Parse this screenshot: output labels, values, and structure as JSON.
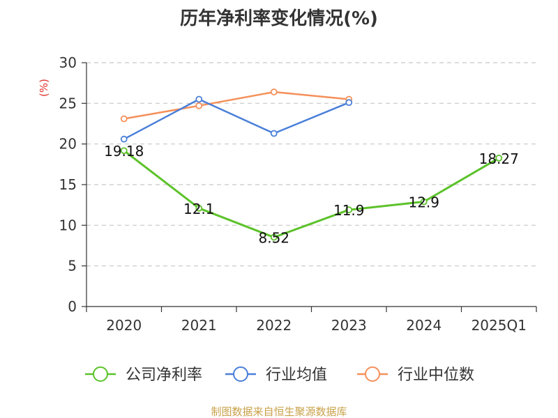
{
  "chart_data": {
    "type": "line",
    "title": "历年净利率变化情况(%)",
    "ylabel": "(%)",
    "xlabel": "",
    "categories": [
      "2020",
      "2021",
      "2022",
      "2023",
      "2024",
      "2025Q1"
    ],
    "ylim": [
      0,
      30
    ],
    "yticks": [
      0,
      5,
      10,
      15,
      20,
      25,
      30
    ],
    "grid": true,
    "legend_position": "bottom",
    "series": [
      {
        "name": "公司净利率",
        "color": "#5cc22a",
        "values": [
          19.18,
          12.1,
          8.52,
          11.9,
          12.9,
          18.27
        ],
        "labels": [
          "19.18",
          "12.1",
          "8.52",
          "11.9",
          "12.9",
          "18.27"
        ]
      },
      {
        "name": "行业均值",
        "color": "#4a7fd9",
        "values": [
          20.6,
          25.5,
          21.3,
          25.1,
          null,
          null
        ]
      },
      {
        "name": "行业中位数",
        "color": "#f5905a",
        "values": [
          23.1,
          24.7,
          26.4,
          25.5,
          null,
          null
        ]
      }
    ],
    "source": "制图数据来自恒生聚源数据库"
  }
}
